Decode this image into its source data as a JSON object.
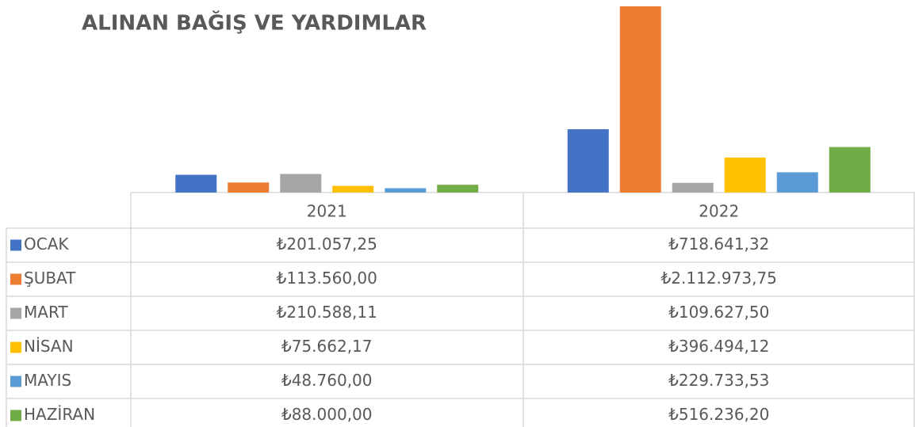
{
  "chart_data": {
    "type": "bar",
    "title": "ALINAN BAĞIŞ VE YARDIMLAR",
    "categories": [
      "2021",
      "2022"
    ],
    "series": [
      {
        "name": "OCAK",
        "color": "#4472c4",
        "values": [
          201057.25,
          718641.32
        ],
        "value_labels": [
          "₺201.057,25",
          "₺718.641,32"
        ]
      },
      {
        "name": "ŞUBAT",
        "color": "#ed7d31",
        "values": [
          113560.0,
          2112973.75
        ],
        "value_labels": [
          "₺113.560,00",
          "₺2.112.973,75"
        ]
      },
      {
        "name": "MART",
        "color": "#a5a5a5",
        "values": [
          210588.11,
          109627.5
        ],
        "value_labels": [
          "₺210.588,11",
          "₺109.627,50"
        ]
      },
      {
        "name": "NİSAN",
        "color": "#ffc000",
        "values": [
          75662.17,
          396494.12
        ],
        "value_labels": [
          "₺75.662,17",
          "₺396.494,12"
        ]
      },
      {
        "name": "MAYIS",
        "color": "#5b9bd5",
        "values": [
          48760.0,
          229733.53
        ],
        "value_labels": [
          "₺48.760,00",
          "₺229.733,53"
        ]
      },
      {
        "name": "HAZİRAN",
        "color": "#70ad47",
        "values": [
          88000.0,
          516236.2
        ],
        "value_labels": [
          "₺88.000,00",
          "₺516.236,20"
        ]
      }
    ]
  }
}
